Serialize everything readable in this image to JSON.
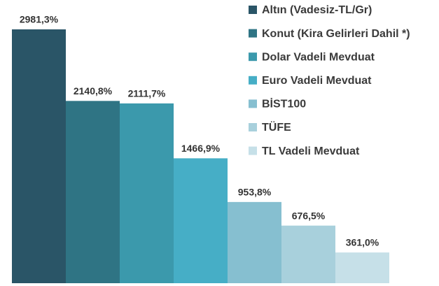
{
  "chart_data": {
    "type": "bar",
    "categories": [
      "Altın (Vadesiz-TL/Gr)",
      "Konut (Kira Gelirleri Dahil *)",
      "Dolar Vadeli Mevduat",
      "Euro Vadeli Mevduat",
      "BİST100",
      "TÜFE",
      "TL Vadeli Mevduat"
    ],
    "values": [
      2981.3,
      2140.8,
      2111.7,
      1466.9,
      953.8,
      676.5,
      361.0
    ],
    "value_labels": [
      "2981,3%",
      "2140,8%",
      "2111,7%",
      "1466,9%",
      "953,8%",
      "676,5%",
      "361,0%"
    ],
    "colors": [
      "#2a5567",
      "#2f7484",
      "#3b99ac",
      "#46aec6",
      "#86bfd0",
      "#a8d0dc",
      "#c6e0e8"
    ],
    "legend": "top-right"
  }
}
